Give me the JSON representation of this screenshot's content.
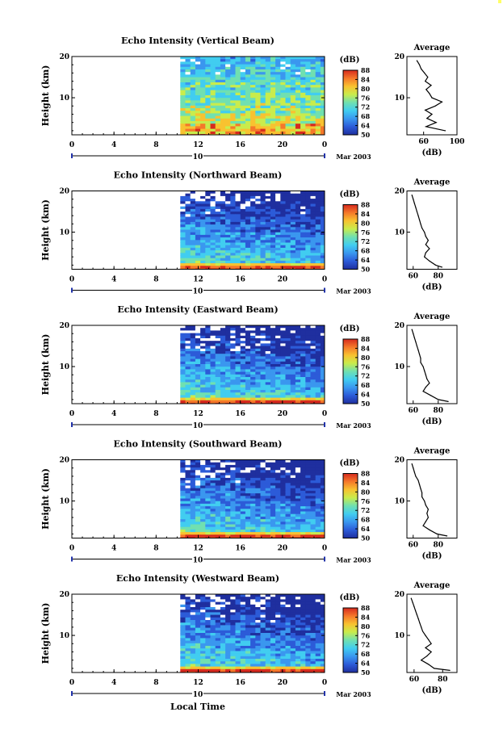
{
  "figure": {
    "x_axis_label": "Local Time",
    "date_label": "Mar 2003",
    "y_axis_label": "Height (km)",
    "colorbar_unit": "(dB)",
    "colorbar_ticks": [
      "50",
      "64",
      "68",
      "72",
      "76",
      "80",
      "84",
      "88"
    ],
    "colorbar_colors": [
      "#1f2f9f",
      "#2c5bd8",
      "#3a97ef",
      "#41cdf0",
      "#70e0b0",
      "#c9ec4c",
      "#f8c230",
      "#f5782a",
      "#d62a1e"
    ],
    "average_title": "Average",
    "average_unit": "(dB)"
  },
  "chart_data": [
    {
      "type": "heatmap",
      "title": "Echo Intensity (Vertical Beam)",
      "xlabel": "",
      "ylabel": "Height (km)",
      "x_ticks": [
        "0",
        "4",
        "8",
        "12",
        "16",
        "20",
        "0"
      ],
      "day_label": "10",
      "xlim": [
        0,
        24
      ],
      "data_start_hour": 10.3,
      "ylim": [
        1,
        20
      ],
      "y_ticks": [
        "10",
        "20"
      ],
      "colorbar": {
        "label": "(dB)",
        "ticks": [
          "50",
          "64",
          "68",
          "72",
          "76",
          "80",
          "84",
          "88"
        ]
      },
      "average_profile": {
        "title": "Average",
        "xlabel": "(dB)",
        "x_ticks": [
          "60",
          "100"
        ],
        "xlim": [
          40,
          100
        ],
        "heights": [
          2,
          3,
          4,
          5,
          6,
          7,
          8,
          9,
          10,
          11,
          12,
          13,
          14,
          15,
          16,
          17,
          18,
          19
        ],
        "values": [
          86,
          63,
          75,
          64,
          70,
          62,
          74,
          82,
          70,
          67,
          63,
          69,
          62,
          65,
          61,
          57,
          55,
          52
        ]
      }
    },
    {
      "type": "heatmap",
      "title": "Echo Intensity (Northward Beam)",
      "xlabel": "",
      "ylabel": "Height (km)",
      "x_ticks": [
        "0",
        "4",
        "8",
        "12",
        "16",
        "20",
        "0"
      ],
      "day_label": "10",
      "xlim": [
        0,
        24
      ],
      "data_start_hour": 10.3,
      "ylim": [
        1,
        20
      ],
      "y_ticks": [
        "10",
        "20"
      ],
      "colorbar": {
        "label": "(dB)",
        "ticks": [
          "50",
          "64",
          "68",
          "72",
          "76",
          "80",
          "84",
          "88"
        ]
      },
      "average_profile": {
        "title": "Average",
        "xlabel": "(dB)",
        "x_ticks": [
          "60",
          "80"
        ],
        "xlim": [
          55,
          95
        ],
        "heights": [
          1.5,
          2,
          3,
          4,
          5,
          6,
          7,
          8,
          9,
          10,
          11,
          12,
          13,
          14,
          15,
          16,
          17,
          18,
          19
        ],
        "values": [
          83,
          78,
          73,
          69,
          70,
          73,
          70,
          72,
          70,
          69,
          67,
          66,
          65,
          64,
          63,
          62,
          61,
          60,
          59
        ]
      }
    },
    {
      "type": "heatmap",
      "title": "Echo Intensity (Eastward Beam)",
      "xlabel": "",
      "ylabel": "Height (km)",
      "x_ticks": [
        "0",
        "4",
        "8",
        "12",
        "16",
        "20",
        "0"
      ],
      "day_label": "10",
      "xlim": [
        0,
        24
      ],
      "data_start_hour": 10.3,
      "ylim": [
        1,
        20
      ],
      "y_ticks": [
        "10",
        "20"
      ],
      "colorbar": {
        "label": "(dB)",
        "ticks": [
          "50",
          "64",
          "68",
          "72",
          "76",
          "80",
          "84",
          "88"
        ]
      },
      "average_profile": {
        "title": "Average",
        "xlabel": "(dB)",
        "x_ticks": [
          "60",
          "80"
        ],
        "xlim": [
          55,
          95
        ],
        "heights": [
          1.5,
          2,
          3,
          4,
          5,
          6,
          7,
          8,
          9,
          10,
          11,
          12,
          13,
          14,
          15,
          16,
          17,
          18,
          19
        ],
        "values": [
          88,
          80,
          74,
          68,
          70,
          73,
          71,
          70,
          69,
          68,
          66,
          66,
          65,
          64,
          63,
          62,
          61,
          60,
          59
        ]
      }
    },
    {
      "type": "heatmap",
      "title": "Echo Intensity (Southward Beam)",
      "xlabel": "",
      "ylabel": "Height (km)",
      "x_ticks": [
        "0",
        "4",
        "8",
        "12",
        "16",
        "20",
        "0"
      ],
      "day_label": "10",
      "xlim": [
        0,
        24
      ],
      "data_start_hour": 10.3,
      "ylim": [
        1,
        20
      ],
      "y_ticks": [
        "10",
        "20"
      ],
      "colorbar": {
        "label": "(dB)",
        "ticks": [
          "50",
          "64",
          "68",
          "72",
          "76",
          "80",
          "84",
          "88"
        ]
      },
      "average_profile": {
        "title": "Average",
        "xlabel": "(dB)",
        "x_ticks": [
          "60",
          "80"
        ],
        "xlim": [
          55,
          95
        ],
        "heights": [
          1.5,
          2,
          3,
          4,
          5,
          6,
          7,
          8,
          9,
          10,
          11,
          12,
          13,
          14,
          15,
          16,
          17,
          18,
          19
        ],
        "values": [
          87,
          79,
          73,
          68,
          70,
          72,
          71,
          72,
          70,
          69,
          67,
          67,
          66,
          65,
          64,
          62,
          61,
          60,
          59
        ]
      }
    },
    {
      "type": "heatmap",
      "title": "Echo Intensity (Westward Beam)",
      "xlabel": "Local Time",
      "ylabel": "Height (km)",
      "x_ticks": [
        "0",
        "4",
        "8",
        "12",
        "16",
        "20",
        "0"
      ],
      "day_label": "10",
      "xlim": [
        0,
        24
      ],
      "data_start_hour": 10.3,
      "ylim": [
        1,
        20
      ],
      "y_ticks": [
        "10",
        "20"
      ],
      "colorbar": {
        "label": "(dB)",
        "ticks": [
          "50",
          "64",
          "68",
          "72",
          "76",
          "80",
          "84",
          "88"
        ]
      },
      "average_profile": {
        "title": "Average",
        "xlabel": "(dB)",
        "x_ticks": [
          "60",
          "80"
        ],
        "xlim": [
          55,
          90
        ],
        "heights": [
          1.5,
          2,
          3,
          4,
          5,
          6,
          7,
          8,
          9,
          10,
          11,
          12,
          13,
          14,
          15,
          16,
          17,
          18,
          19
        ],
        "values": [
          85,
          74,
          70,
          65,
          69,
          72,
          68,
          72,
          70,
          68,
          66,
          65,
          64,
          63,
          62,
          61,
          60,
          59,
          58
        ]
      }
    }
  ]
}
